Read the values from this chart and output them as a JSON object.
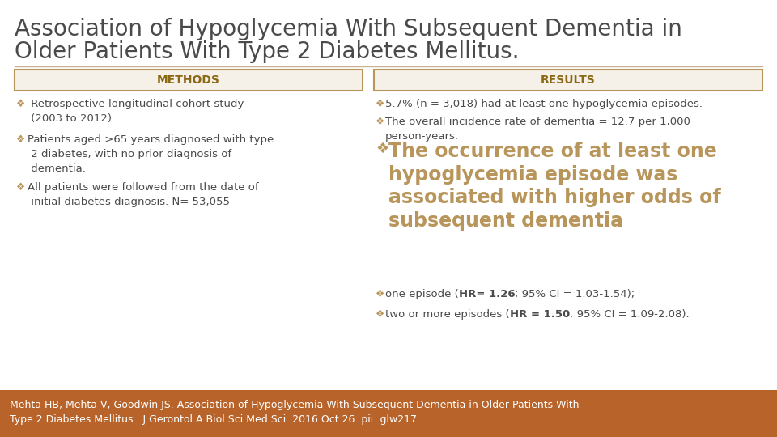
{
  "title_line1": "Association of Hypoglycemia With Subsequent Dementia in",
  "title_line2": "Older Patients With Type 2 Diabetes Mellitus.",
  "title_color": "#4a4a4a",
  "title_fontsize": 20,
  "bg_color": "#ffffff",
  "divider_color": "#c8b090",
  "methods_header": "METHODS",
  "results_header": "RESULTS",
  "header_bg": "#f5f0e8",
  "header_border": "#b8955a",
  "header_text_color": "#8b6914",
  "header_fontsize": 10,
  "methods_item1": " Retrospective longitudinal cohort study\n (2003 to 2012).",
  "methods_item2": "Patients aged >65 years diagnosed with type\n 2 diabetes, with no prior diagnosis of\n dementia.",
  "methods_item3": "All patients were followed from the date of\n initial diabetes diagnosis. N= 53,055",
  "results_item1": "5.7% (n = 3,018) had at least one hypoglycemia episodes.",
  "results_item2": "The overall incidence rate of dementia = 12.7 per 1,000\nperson-years.",
  "results_big_text": "The occurrence of at least one\nhypoglycemia episode was\nassociated with higher odds of\nsubsequent dementia",
  "results_item3_plain": "one episode (",
  "results_item3_bold": "HR= 1.26",
  "results_item3_rest": "; 95% CI = 1.03-1.54);",
  "results_item4_plain": "two or more episodes (",
  "results_item4_bold": "HR = 1.50",
  "results_item4_rest": "; 95% CI = 1.09-2.08).",
  "bullet_color": "#b8955a",
  "small_text_color": "#4a4a4a",
  "big_text_color": "#b8955a",
  "big_text_fontsize": 17,
  "small_fontsize": 9.5,
  "footer_bg": "#b8632a",
  "footer_line1": "Mehta HB, Mehta V, Goodwin JS. Association of Hypoglycemia With Subsequent Dementia in Older Patients With",
  "footer_line2": "Type 2 Diabetes Mellitus.  J Gerontol A Biol Sci Med Sci. 2016 Oct 26. pii: glw217.",
  "footer_text_color": "#ffffff",
  "footer_fontsize": 9
}
